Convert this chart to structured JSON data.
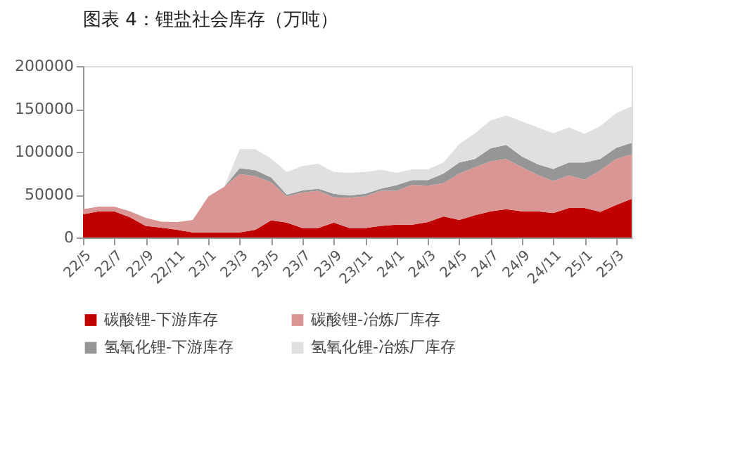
{
  "chart_data": {
    "type": "area",
    "title": "图表 4：锂盐社会库存（万吨）",
    "categories": [
      "22/5",
      null,
      "22/7",
      null,
      "22/9",
      null,
      "22/11",
      null,
      "23/1",
      null,
      "23/3",
      null,
      "23/5",
      null,
      "23/7",
      null,
      "23/9",
      null,
      "23/11",
      null,
      "24/1",
      null,
      "24/3",
      null,
      "24/5",
      null,
      "24/7",
      null,
      "24/9",
      null,
      "24/11",
      null,
      "25/1",
      null,
      "25/3",
      null
    ],
    "stacked": true,
    "series": [
      {
        "name": "碳酸锂-下游库存",
        "color": "#c00000",
        "values": [
          27000,
          30500,
          30500,
          23500,
          13500,
          11500,
          9000,
          6000,
          6000,
          6000,
          6000,
          9000,
          20000,
          17500,
          11000,
          11000,
          17500,
          11000,
          11000,
          13500,
          15000,
          15000,
          18000,
          24500,
          20500,
          26000,
          30500,
          33000,
          30500,
          30500,
          28500,
          34500,
          34500,
          30000,
          38000,
          45000
        ]
      },
      {
        "name": "碳酸锂-冶炼厂库存",
        "color": "#d99694",
        "values": [
          6000,
          5500,
          5500,
          7000,
          9500,
          7000,
          9000,
          14500,
          42000,
          53000,
          68000,
          62500,
          44500,
          30500,
          41500,
          43500,
          29500,
          35500,
          37000,
          41000,
          39500,
          46500,
          42500,
          39000,
          54000,
          56000,
          58500,
          58500,
          51500,
          42500,
          37500,
          38000,
          33000,
          48500,
          53500,
          52000
        ]
      },
      {
        "name": "氢氧化锂-下游库存",
        "color": "#969696",
        "values": [
          0,
          0,
          0,
          0,
          0,
          0,
          0,
          0,
          0,
          0,
          7000,
          7000,
          5500,
          2000,
          2500,
          2500,
          4000,
          2500,
          3000,
          2500,
          6500,
          5500,
          6500,
          11000,
          13000,
          9500,
          15000,
          16500,
          12500,
          12500,
          14000,
          15000,
          20000,
          13000,
          13000,
          13500
        ]
      },
      {
        "name": "氢氧化锂-冶炼厂库存",
        "color": "#e0e0e0",
        "values": [
          0,
          0,
          0,
          0,
          0,
          0,
          0,
          0,
          0,
          0,
          22000,
          24500,
          22000,
          26500,
          28500,
          29000,
          25500,
          26500,
          25500,
          22000,
          14500,
          12500,
          12500,
          13000,
          21500,
          30000,
          32500,
          34500,
          41000,
          43000,
          41500,
          41000,
          33500,
          38500,
          40500,
          42500
        ]
      }
    ],
    "ylim": [
      0,
      200000
    ],
    "yticks": [
      0,
      50000,
      100000,
      150000,
      200000
    ],
    "grid": false,
    "legend": "bottom"
  }
}
